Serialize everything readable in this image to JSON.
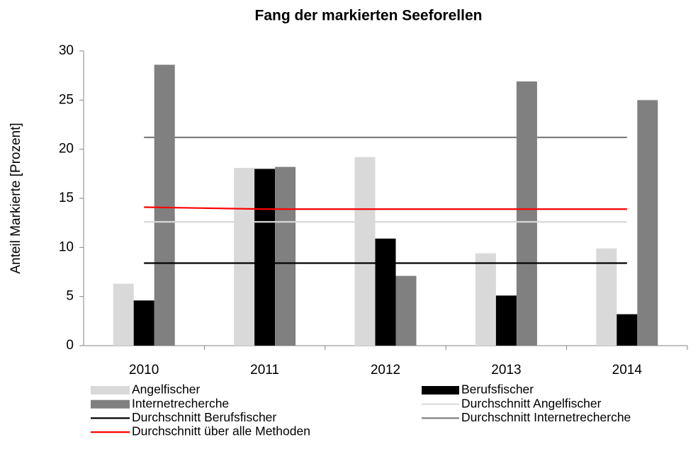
{
  "chart_data": {
    "type": "bar",
    "title": "Fang der markierten Seeforellen",
    "y_label": "Anteil Markierte [Prozent]",
    "categories": [
      "2010",
      "2011",
      "2012",
      "2013",
      "2014"
    ],
    "ylim": [
      0,
      30
    ],
    "yticks": [
      0,
      5,
      10,
      15,
      20,
      25,
      30
    ],
    "series": [
      {
        "name": "Angelfischer",
        "type": "bar",
        "color": "#d9d9d9",
        "values": [
          6.3,
          18.1,
          19.2,
          9.4,
          9.9
        ]
      },
      {
        "name": "Berufsfischer",
        "type": "bar",
        "color": "#000000",
        "values": [
          4.6,
          18.0,
          10.9,
          5.1,
          3.2
        ]
      },
      {
        "name": "Internetrecherche",
        "type": "bar",
        "color": "#808080",
        "values": [
          28.6,
          18.2,
          7.1,
          26.9,
          25.0
        ]
      },
      {
        "name": "Durchschnitt Angelfischer",
        "type": "line",
        "color": "#d9d9d9",
        "values": [
          12.6,
          12.6,
          12.6,
          12.6,
          12.6
        ]
      },
      {
        "name": "Durchschnitt Berufsfischer",
        "type": "line",
        "color": "#000000",
        "values": [
          8.4,
          8.4,
          8.4,
          8.4,
          8.4
        ]
      },
      {
        "name": "Durchschnitt Internetrecherche",
        "type": "line",
        "color": "#808080",
        "values": [
          21.2,
          21.2,
          21.2,
          21.2,
          21.2
        ]
      },
      {
        "name": "Durchschnitt über alle Methoden",
        "type": "line",
        "color": "#ff0000",
        "values": [
          14.1,
          13.9,
          13.9,
          13.9,
          13.9
        ]
      }
    ]
  }
}
